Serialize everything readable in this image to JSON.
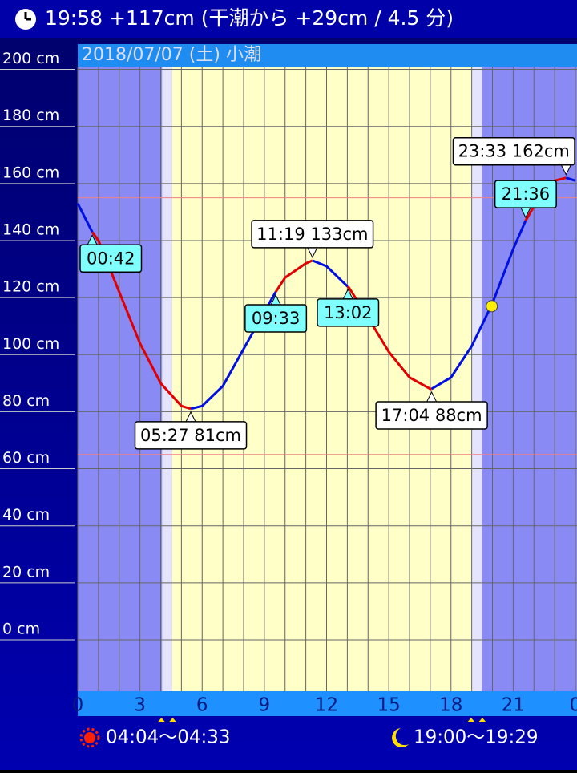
{
  "chart_data": {
    "type": "line",
    "title": "19:58 +117cm (干潮から +29cm / 4.5 分)",
    "subtitle": "2018/07/07 (土) 小潮",
    "x": [
      0,
      0.7,
      1,
      2,
      3,
      4,
      5,
      5.45,
      6,
      7,
      8,
      9,
      9.55,
      10,
      11,
      11.317,
      12,
      13,
      13.033,
      14,
      15,
      16,
      17,
      17.067,
      18,
      19,
      20,
      21,
      21.6,
      22,
      23,
      23.55,
      24
    ],
    "series": [
      {
        "values": [
          153,
          143,
          140,
          122,
          104,
          90,
          82,
          81,
          82,
          89,
          102,
          115,
          122,
          127,
          132,
          133,
          131,
          124,
          124,
          113,
          101,
          92,
          88,
          88,
          92,
          103,
          118,
          137,
          147,
          152,
          161,
          162,
          161
        ],
        "colors": [
          "#0010e0",
          "#e00000",
          "#e00000",
          "#e00000",
          "#e00000",
          "#e00000",
          "#e00000",
          "#0010e0",
          "#0010e0",
          "#0010e0",
          "#0010e0",
          "#0010e0",
          "#e00000",
          "#e00000",
          "#e00000",
          "#0010e0",
          "#0010e0",
          "#0010e0",
          "#e00000",
          "#e00000",
          "#e00000",
          "#e00000",
          "#e00000",
          "#0010e0",
          "#0010e0",
          "#0010e0",
          "#0010e0",
          "#0010e0",
          "#e00000",
          "#e00000",
          "#e00000",
          "#0010e0",
          "#0010e0"
        ]
      }
    ],
    "xlim": [
      0,
      24
    ],
    "ylim": [
      -18,
      201
    ],
    "xticks": [
      0,
      3,
      6,
      9,
      12,
      15,
      18,
      21,
      {
        "value": 24,
        "label": "0"
      }
    ],
    "xgrid_step": 1,
    "yticks": [
      {
        "value": 0,
        "label": "0 cm"
      },
      {
        "value": 20,
        "label": "20 cm"
      },
      {
        "value": 40,
        "label": "40 cm"
      },
      {
        "value": 60,
        "label": "60 cm"
      },
      {
        "value": 80,
        "label": "80 cm"
      },
      {
        "value": 100,
        "label": "100 cm"
      },
      {
        "value": 120,
        "label": "120 cm"
      },
      {
        "value": 140,
        "label": "140 cm"
      },
      {
        "value": 160,
        "label": "160 cm"
      },
      {
        "value": 180,
        "label": "180 cm"
      },
      {
        "value": 200,
        "label": "200 cm"
      }
    ],
    "ref_lines": [
      155,
      65
    ],
    "twilight": [
      {
        "start": 4.067,
        "end": 4.55,
        "label": "04:04〜04:33"
      },
      {
        "start": 19.0,
        "end": 19.483,
        "label": "19:00〜19:29"
      }
    ],
    "current": {
      "x": 19.967,
      "y": 117,
      "color": "#ffee00"
    },
    "annotations": [
      {
        "x": 0.7,
        "y": 143,
        "label": "00:42",
        "style": "point",
        "position": "below"
      },
      {
        "x": 5.45,
        "y": 81,
        "label": "05:27 81cm",
        "style": "extreme",
        "position": "below"
      },
      {
        "x": 9.55,
        "y": 122,
        "label": "09:33",
        "style": "point",
        "position": "below"
      },
      {
        "x": 11.317,
        "y": 133,
        "label": "11:19 133cm",
        "style": "extreme",
        "position": "above"
      },
      {
        "x": 13.033,
        "y": 124,
        "label": "13:02",
        "style": "point",
        "position": "below"
      },
      {
        "x": 17.067,
        "y": 88,
        "label": "17:04 88cm",
        "style": "extreme",
        "position": "below"
      },
      {
        "x": 21.6,
        "y": 147,
        "label": "21:36",
        "style": "point",
        "position": "above"
      },
      {
        "x": 23.55,
        "y": 162,
        "label": "23:33 162cm",
        "style": "extreme",
        "position": "above"
      }
    ]
  }
}
